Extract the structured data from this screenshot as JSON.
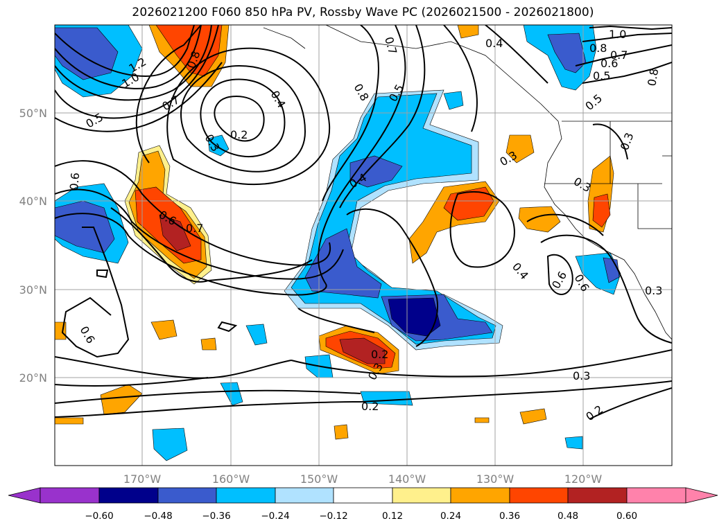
{
  "title": "2026021200 F060 850 hPa PV, Rossby Wave PC (2026021500 - 2026021800)",
  "map": {
    "longitude_labels": [
      "170°W",
      "160°W",
      "150°W",
      "140°W",
      "130°W",
      "120°W"
    ],
    "latitude_labels": [
      "50°N",
      "40°N",
      "30°N",
      "20°N"
    ]
  },
  "contour_labels": [
    "1.2",
    "1.0",
    "0.8",
    "0.7",
    "0.6",
    "0.5",
    "0.4",
    "0.3",
    "0.2",
    "0.8",
    "0.7",
    "0.6",
    "0.5",
    "0.4",
    "0.3",
    "0.2",
    "1.0",
    "0.8",
    "0.7",
    "0.6",
    "0.5",
    "0.4",
    "0.3",
    "0.8",
    "0.7",
    "0.6",
    "0.5",
    "0.4",
    "0.3",
    "0.2",
    "0.6",
    "0.6",
    "0.3",
    "0.3",
    "0.3",
    "0.2"
  ],
  "colorbar": {
    "tick_labels": [
      "−0.60",
      "−0.48",
      "−0.36",
      "−0.24",
      "−0.12",
      "0.12",
      "0.24",
      "0.36",
      "0.48",
      "0.60"
    ],
    "colors": [
      "#9932cc",
      "#00008b",
      "#3a5bcd",
      "#00bfff",
      "#b0e2ff",
      "#ffffff",
      "#fff08c",
      "#ffa500",
      "#ff4500",
      "#b22222",
      "#ff82ab"
    ]
  }
}
